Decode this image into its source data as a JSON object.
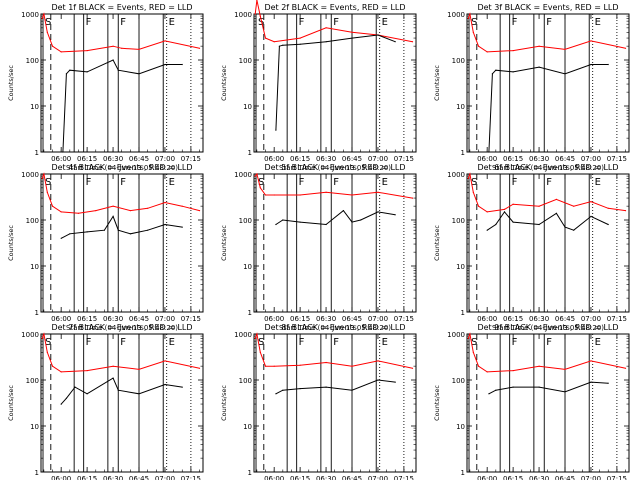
{
  "chart_data": {
    "type": "line",
    "ylabel": "Counts/sec",
    "xlabel": "Start Time (04-Jun-13 05:48:20)",
    "x_axis": {
      "start": "05:48:20",
      "end": "07:22:00",
      "tick_labels": [
        "06:00",
        "06:15",
        "06:30",
        "06:45",
        "07:00",
        "07:15"
      ]
    },
    "y_axis": {
      "scale": "log",
      "range": [
        1,
        1000
      ],
      "tick_labels": [
        "1",
        "10",
        "100",
        "1000"
      ]
    },
    "markers": [
      {
        "label": "S",
        "time": "05:49:30",
        "style": "solid"
      },
      {
        "label": "",
        "time": "05:54:00",
        "style": "dashed"
      },
      {
        "label": "",
        "time": "06:07:30",
        "style": "solid"
      },
      {
        "label": "F",
        "time": "06:13:00",
        "style": "solid"
      },
      {
        "label": "",
        "time": "06:27:00",
        "style": "solid"
      },
      {
        "label": "F",
        "time": "06:33:00",
        "style": "solid"
      },
      {
        "label": "",
        "time": "06:45:00",
        "style": "solid"
      },
      {
        "label": "",
        "time": "06:59:00",
        "style": "solid"
      },
      {
        "label": "E",
        "time": "07:01:00",
        "style": "dotted"
      },
      {
        "label": "",
        "time": "07:15:00",
        "style": "dotted"
      }
    ],
    "series_colors": {
      "events": "#000000",
      "lld": "#ff0000"
    },
    "panels": [
      {
        "title": "Det 1f BLACK = Events, RED = LLD",
        "series": [
          {
            "key": "lld",
            "color": "#ff0000",
            "x": [
              "05:49",
              "05:50",
              "05:52",
              "05:55",
              "06:00",
              "06:15",
              "06:30",
              "06:35",
              "06:45",
              "07:00",
              "07:20"
            ],
            "y": [
              800,
              1000,
              400,
              200,
              150,
              160,
              200,
              180,
              170,
              260,
              180
            ]
          },
          {
            "key": "events",
            "color": "#000000",
            "x": [
              "06:01",
              "06:03",
              "06:05",
              "06:15",
              "06:30",
              "06:33",
              "06:45",
              "07:00",
              "07:10"
            ],
            "y": [
              1,
              50,
              60,
              55,
              100,
              60,
              50,
              80,
              80
            ]
          }
        ]
      },
      {
        "title": "Det 2f BLACK = Events, RED = LLD",
        "series": [
          {
            "key": "lld",
            "color": "#ff0000",
            "x": [
              "05:49",
              "05:50",
              "05:52",
              "05:55",
              "06:00",
              "06:15",
              "06:30",
              "06:45",
              "07:00",
              "07:20"
            ],
            "y": [
              1000,
              2000,
              900,
              300,
              250,
              300,
              500,
              400,
              350,
              250
            ]
          },
          {
            "key": "events",
            "color": "#000000",
            "x": [
              "06:01",
              "06:03",
              "06:05",
              "06:15",
              "06:30",
              "06:45",
              "07:00",
              "07:10"
            ],
            "y": [
              3,
              200,
              210,
              220,
              250,
              300,
              350,
              250
            ]
          }
        ]
      },
      {
        "title": "Det 3f BLACK = Events, RED = LLD",
        "series": [
          {
            "key": "lld",
            "color": "#ff0000",
            "x": [
              "05:49",
              "05:50",
              "05:52",
              "05:55",
              "06:00",
              "06:15",
              "06:30",
              "06:45",
              "07:00",
              "07:20"
            ],
            "y": [
              800,
              1000,
              400,
              200,
              150,
              160,
              200,
              170,
              260,
              180
            ]
          },
          {
            "key": "events",
            "color": "#000000",
            "x": [
              "06:01",
              "06:03",
              "06:05",
              "06:15",
              "06:30",
              "06:45",
              "07:00",
              "07:10"
            ],
            "y": [
              1,
              50,
              60,
              55,
              70,
              50,
              80,
              80
            ]
          }
        ]
      },
      {
        "title": "Det 4f BLACK = Events, RED = LLD",
        "series": [
          {
            "key": "lld",
            "color": "#ff0000",
            "x": [
              "05:49",
              "05:50",
              "05:52",
              "05:55",
              "06:00",
              "06:10",
              "06:20",
              "06:30",
              "06:40",
              "06:50",
              "07:00",
              "07:10",
              "07:20"
            ],
            "y": [
              800,
              1000,
              400,
              200,
              150,
              140,
              160,
              200,
              160,
              180,
              240,
              200,
              160
            ]
          },
          {
            "key": "events",
            "color": "#000000",
            "x": [
              "06:00",
              "06:05",
              "06:15",
              "06:25",
              "06:30",
              "06:33",
              "06:40",
              "06:50",
              "07:00",
              "07:10"
            ],
            "y": [
              40,
              50,
              55,
              60,
              120,
              60,
              50,
              60,
              80,
              70
            ]
          }
        ]
      },
      {
        "title": "Det 5f BLACK = Events, RED = LLD",
        "series": [
          {
            "key": "lld",
            "color": "#ff0000",
            "x": [
              "05:49",
              "05:50",
              "05:52",
              "05:55",
              "06:00",
              "06:15",
              "06:30",
              "06:45",
              "07:00",
              "07:20"
            ],
            "y": [
              900,
              1000,
              500,
              350,
              350,
              350,
              400,
              350,
              400,
              300
            ]
          },
          {
            "key": "events",
            "color": "#000000",
            "x": [
              "06:01",
              "06:05",
              "06:15",
              "06:30",
              "06:40",
              "06:45",
              "06:50",
              "07:00",
              "07:10"
            ],
            "y": [
              80,
              100,
              90,
              80,
              160,
              90,
              100,
              150,
              130
            ]
          }
        ]
      },
      {
        "title": "Det 6f BLACK = Events, RED = LLD",
        "series": [
          {
            "key": "lld",
            "color": "#ff0000",
            "x": [
              "05:49",
              "05:50",
              "05:52",
              "05:55",
              "06:00",
              "06:10",
              "06:15",
              "06:30",
              "06:40",
              "06:50",
              "07:00",
              "07:10",
              "07:20"
            ],
            "y": [
              800,
              1000,
              400,
              200,
              150,
              170,
              220,
              200,
              280,
              200,
              250,
              180,
              160
            ]
          },
          {
            "key": "events",
            "color": "#000000",
            "x": [
              "06:00",
              "06:05",
              "06:10",
              "06:15",
              "06:30",
              "06:40",
              "06:45",
              "06:50",
              "07:00",
              "07:10"
            ],
            "y": [
              60,
              80,
              150,
              90,
              80,
              140,
              70,
              60,
              120,
              80
            ]
          }
        ]
      },
      {
        "title": "Det 7f BLACK = Events, RED = LLD",
        "series": [
          {
            "key": "lld",
            "color": "#ff0000",
            "x": [
              "05:49",
              "05:50",
              "05:52",
              "05:55",
              "06:00",
              "06:15",
              "06:30",
              "06:45",
              "07:00",
              "07:20"
            ],
            "y": [
              800,
              1000,
              400,
              200,
              150,
              160,
              200,
              170,
              260,
              180
            ]
          },
          {
            "key": "events",
            "color": "#000000",
            "x": [
              "06:00",
              "06:03",
              "06:08",
              "06:15",
              "06:30",
              "06:33",
              "06:45",
              "07:00",
              "07:10"
            ],
            "y": [
              30,
              40,
              70,
              50,
              110,
              60,
              50,
              80,
              70
            ]
          }
        ]
      },
      {
        "title": "Det 8f BLACK = Events, RED = LLD",
        "series": [
          {
            "key": "lld",
            "color": "#ff0000",
            "x": [
              "05:49",
              "05:50",
              "05:52",
              "05:55",
              "06:00",
              "06:15",
              "06:30",
              "06:45",
              "07:00",
              "07:20"
            ],
            "y": [
              800,
              1000,
              400,
              200,
              200,
              210,
              240,
              200,
              260,
              180
            ]
          },
          {
            "key": "events",
            "color": "#000000",
            "x": [
              "06:01",
              "06:05",
              "06:15",
              "06:30",
              "06:45",
              "07:00",
              "07:10"
            ],
            "y": [
              50,
              60,
              65,
              70,
              60,
              100,
              90
            ]
          }
        ]
      },
      {
        "title": "Det 9f BLACK = Events, RED = LLD",
        "series": [
          {
            "key": "lld",
            "color": "#ff0000",
            "x": [
              "05:49",
              "05:50",
              "05:52",
              "05:55",
              "06:00",
              "06:15",
              "06:30",
              "06:45",
              "07:00",
              "07:20"
            ],
            "y": [
              800,
              1000,
              400,
              200,
              150,
              160,
              200,
              170,
              260,
              180
            ]
          },
          {
            "key": "events",
            "color": "#000000",
            "x": [
              "06:01",
              "06:05",
              "06:15",
              "06:30",
              "06:45",
              "07:00",
              "07:10"
            ],
            "y": [
              50,
              60,
              70,
              70,
              55,
              90,
              85
            ]
          }
        ]
      }
    ]
  }
}
